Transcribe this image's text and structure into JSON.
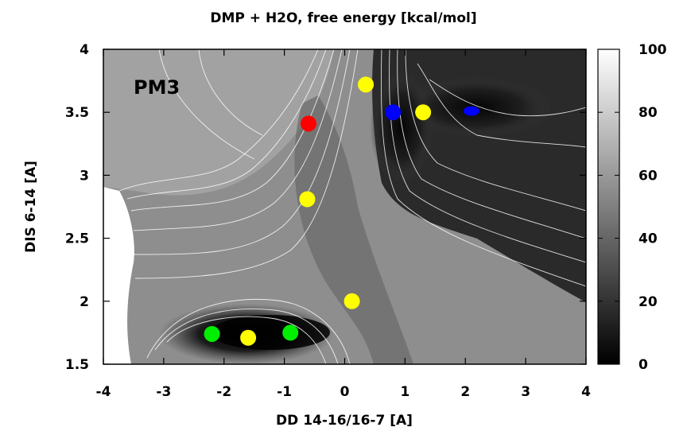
{
  "chart_data": {
    "type": "heatmap",
    "title": "DMP + H2O, free energy [kcal/mol]",
    "xlabel": "DD 14-16/16-7 [A]",
    "ylabel": "DIS 6-14 [A]",
    "xlim": [
      -4,
      4
    ],
    "ylim": [
      1.5,
      4
    ],
    "xticks": [
      "-4",
      "-3",
      "-2",
      "-1",
      "0",
      "1",
      "2",
      "3",
      "4"
    ],
    "yticks": [
      "1.5",
      "2",
      "2.5",
      "3",
      "3.5",
      "4"
    ],
    "colorbar": {
      "min": 0,
      "max": 100,
      "ticks": [
        "0",
        "20",
        "40",
        "60",
        "80",
        "100"
      ],
      "colors": [
        "#000000",
        "#ffffff"
      ]
    },
    "annotation": {
      "text": "PM3",
      "color": "#7a0000"
    },
    "grid": false,
    "markers": [
      {
        "x": 0.35,
        "y": 3.72,
        "color": "#ffff00"
      },
      {
        "x": 0.8,
        "y": 3.5,
        "color": "#0000ff"
      },
      {
        "x": 1.3,
        "y": 3.5,
        "color": "#ffff00"
      },
      {
        "x": 2.1,
        "y": 3.51,
        "color": "#0000ff",
        "shape": "ellipse"
      },
      {
        "x": -0.6,
        "y": 3.41,
        "color": "#ff0000"
      },
      {
        "x": -0.62,
        "y": 2.81,
        "color": "#ffff00"
      },
      {
        "x": 0.12,
        "y": 2.0,
        "color": "#ffff00"
      },
      {
        "x": -2.2,
        "y": 1.74,
        "color": "#00ee00"
      },
      {
        "x": -1.6,
        "y": 1.71,
        "color": "#ffff00"
      },
      {
        "x": -0.9,
        "y": 1.75,
        "color": "#00ee00"
      }
    ]
  }
}
